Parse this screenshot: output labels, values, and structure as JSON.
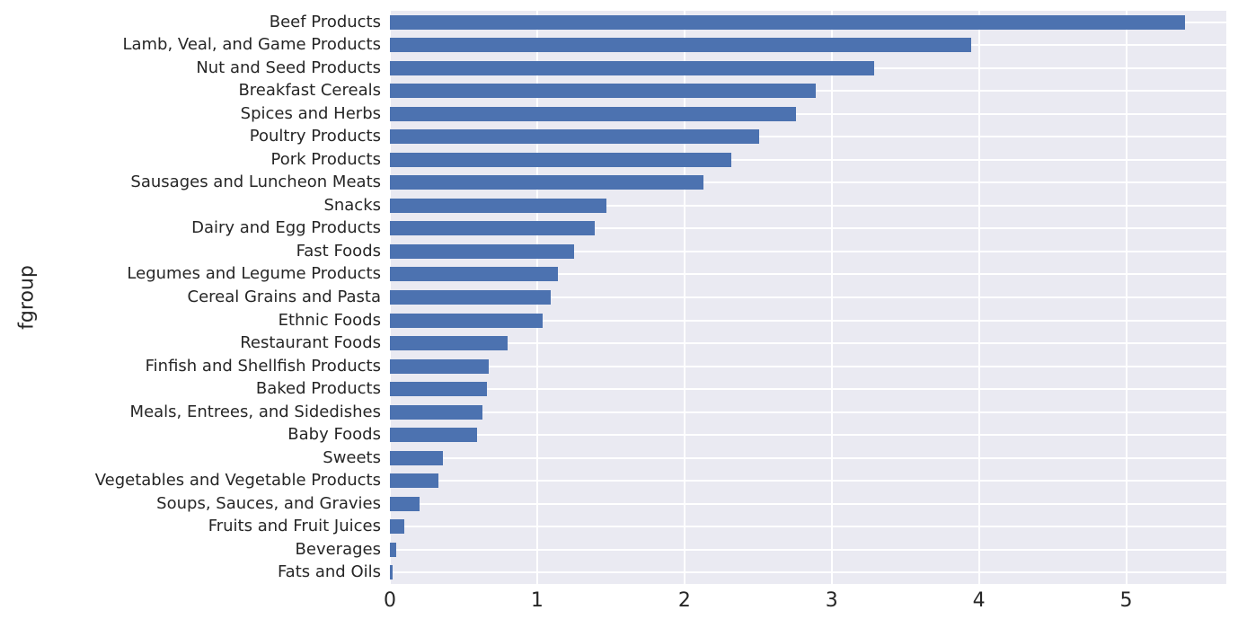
{
  "chart_data": {
    "type": "bar",
    "orientation": "horizontal",
    "title": "",
    "xlabel": "",
    "ylabel": "fgroup",
    "xlim": [
      0,
      5.68
    ],
    "xticks": [
      0,
      1,
      2,
      3,
      4,
      5
    ],
    "grid": true,
    "legend": "none",
    "plot_bg_color": "#EAEAF2",
    "grid_color": "#FFFFFF",
    "bar_color": "#4C72B0",
    "text_color": "#262626",
    "categories": [
      "Beef Products",
      "Lamb, Veal, and Game Products",
      "Nut and Seed Products",
      "Breakfast Cereals",
      "Spices and Herbs",
      "Poultry Products",
      "Pork Products",
      "Sausages and Luncheon Meats",
      "Snacks",
      "Dairy and Egg Products",
      "Fast Foods",
      "Legumes and Legume Products",
      "Cereal Grains and Pasta",
      "Ethnic Foods",
      "Restaurant Foods",
      "Finfish and Shellfish Products",
      "Baked Products",
      "Meals, Entrees, and Sidedishes",
      "Baby Foods",
      "Sweets",
      "Vegetables and Vegetable Products",
      "Soups, Sauces, and Gravies",
      "Fruits and Fruit Juices",
      "Beverages",
      "Fats and Oils"
    ],
    "values": [
      5.4,
      3.95,
      3.29,
      2.89,
      2.76,
      2.51,
      2.32,
      2.13,
      1.47,
      1.39,
      1.25,
      1.14,
      1.09,
      1.04,
      0.8,
      0.67,
      0.66,
      0.63,
      0.59,
      0.36,
      0.33,
      0.2,
      0.1,
      0.04,
      0.02
    ]
  }
}
